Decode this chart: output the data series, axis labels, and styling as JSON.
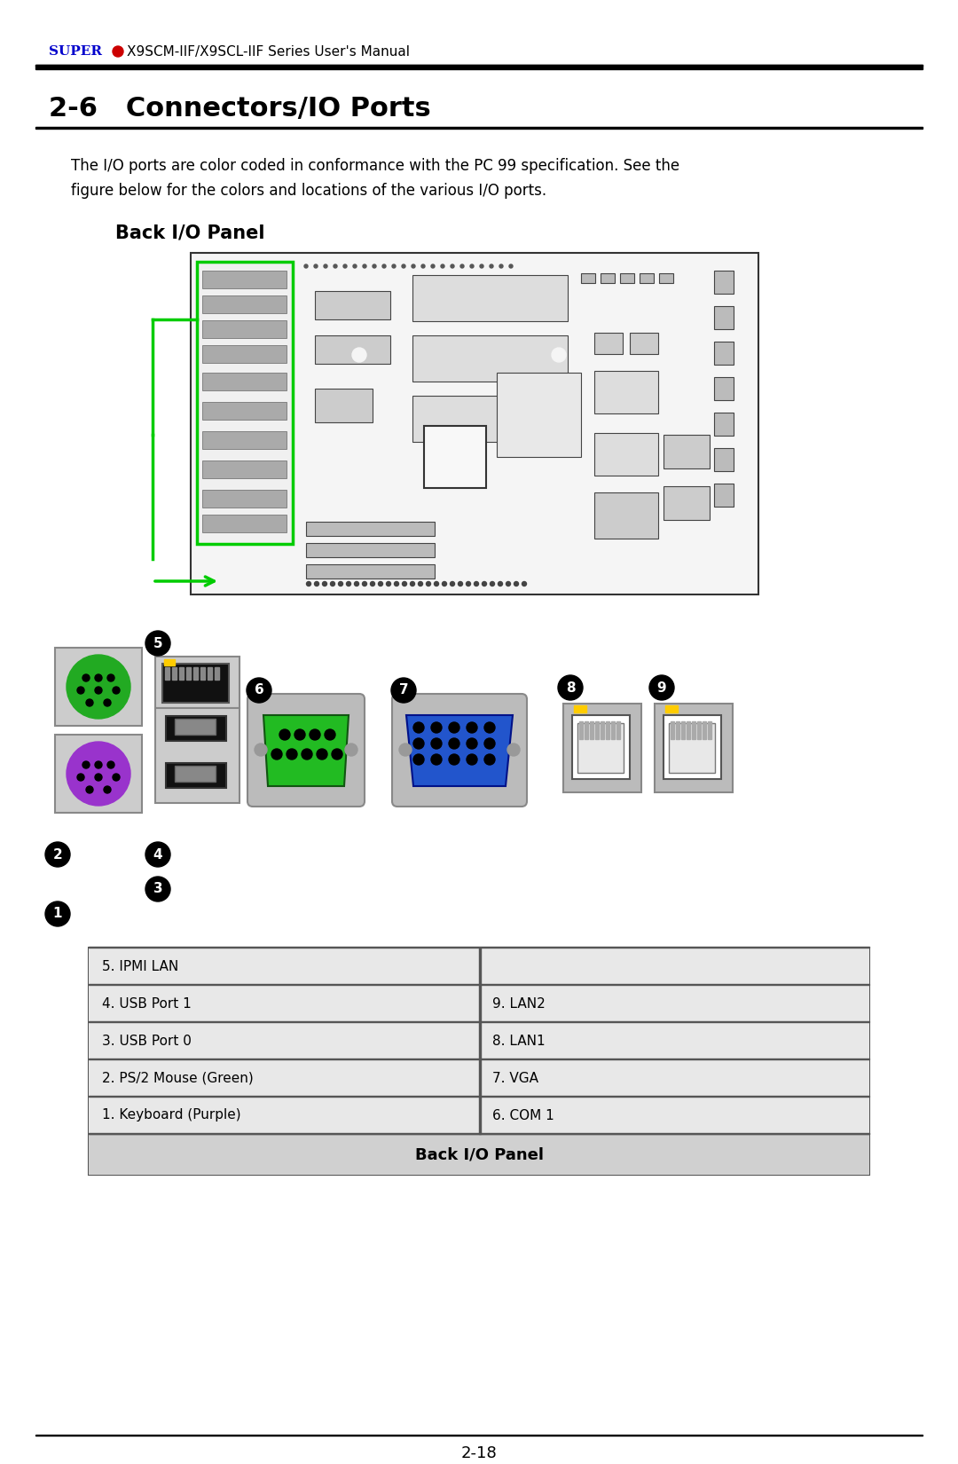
{
  "title_super": "SUPER",
  "title_dot_color": "#cc0000",
  "title_rest": "X9SCM-IIF/X9SCL-IIF Series User's Manual",
  "title_super_color": "#0000cc",
  "section_title": "2-6   Connectors/IO Ports",
  "body_text": "The I/O ports are color coded in conformance with the PC 99 specification. See the\nfigure below for the colors and locations of the various I/O ports.",
  "subsection_title": "Back I/O Panel",
  "page_number": "2-18",
  "table_title": "Back I/O Panel",
  "table_rows": [
    [
      "1. Keyboard (Purple)",
      "6. COM 1"
    ],
    [
      "2. PS/2 Mouse (Green)",
      "7. VGA"
    ],
    [
      "3. USB Port 0",
      "8. LAN1"
    ],
    [
      "4. USB Port 1",
      "9. LAN2"
    ],
    [
      "5. IPMI LAN",
      ""
    ]
  ],
  "bg_color": "#ffffff",
  "table_header_bg": "#d0d0d0",
  "table_row_bg": "#e8e8e8",
  "table_border_color": "#555555"
}
